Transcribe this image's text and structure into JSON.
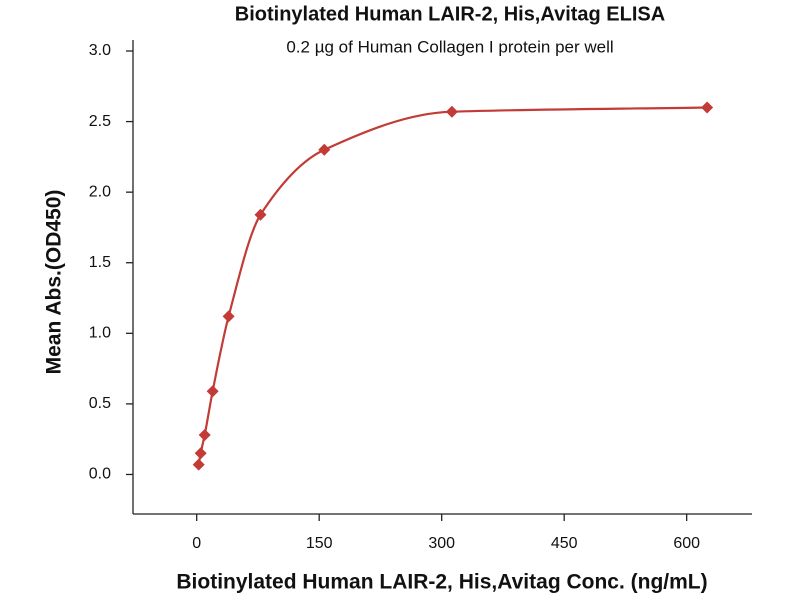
{
  "chart_data": {
    "type": "scatter",
    "title": "Biotinylated Human LAIR-2, His,Avitag ELISA",
    "subtitle": "0.2 µg of Human Collagen I protein per well",
    "x_label": "Biotinylated Human LAIR-2, His,Avitag Conc. (ng/mL)",
    "y_label": "Mean Abs.(OD450)",
    "series": [
      {
        "name": "Mean Abs.",
        "color": "#c23b36",
        "x": [
          2.44,
          4.88,
          9.77,
          19.53,
          39.06,
          78.125,
          156.25,
          312.5,
          625
        ],
        "values": [
          0.07,
          0.15,
          0.28,
          0.59,
          1.12,
          1.84,
          2.3,
          2.57,
          2.6
        ]
      }
    ],
    "xlim": [
      -78,
      680
    ],
    "xticks": [
      0,
      150,
      300,
      450,
      600
    ],
    "ylim": [
      -0.28,
      3.0
    ],
    "yticks": [
      {
        "value": 0,
        "label": "0.0"
      },
      0.5,
      {
        "value": 1,
        "label": "1.0"
      },
      1.5,
      {
        "value": 2,
        "label": "2.0"
      },
      2.5,
      {
        "value": 3,
        "label": "3.0"
      }
    ],
    "grid": false
  }
}
